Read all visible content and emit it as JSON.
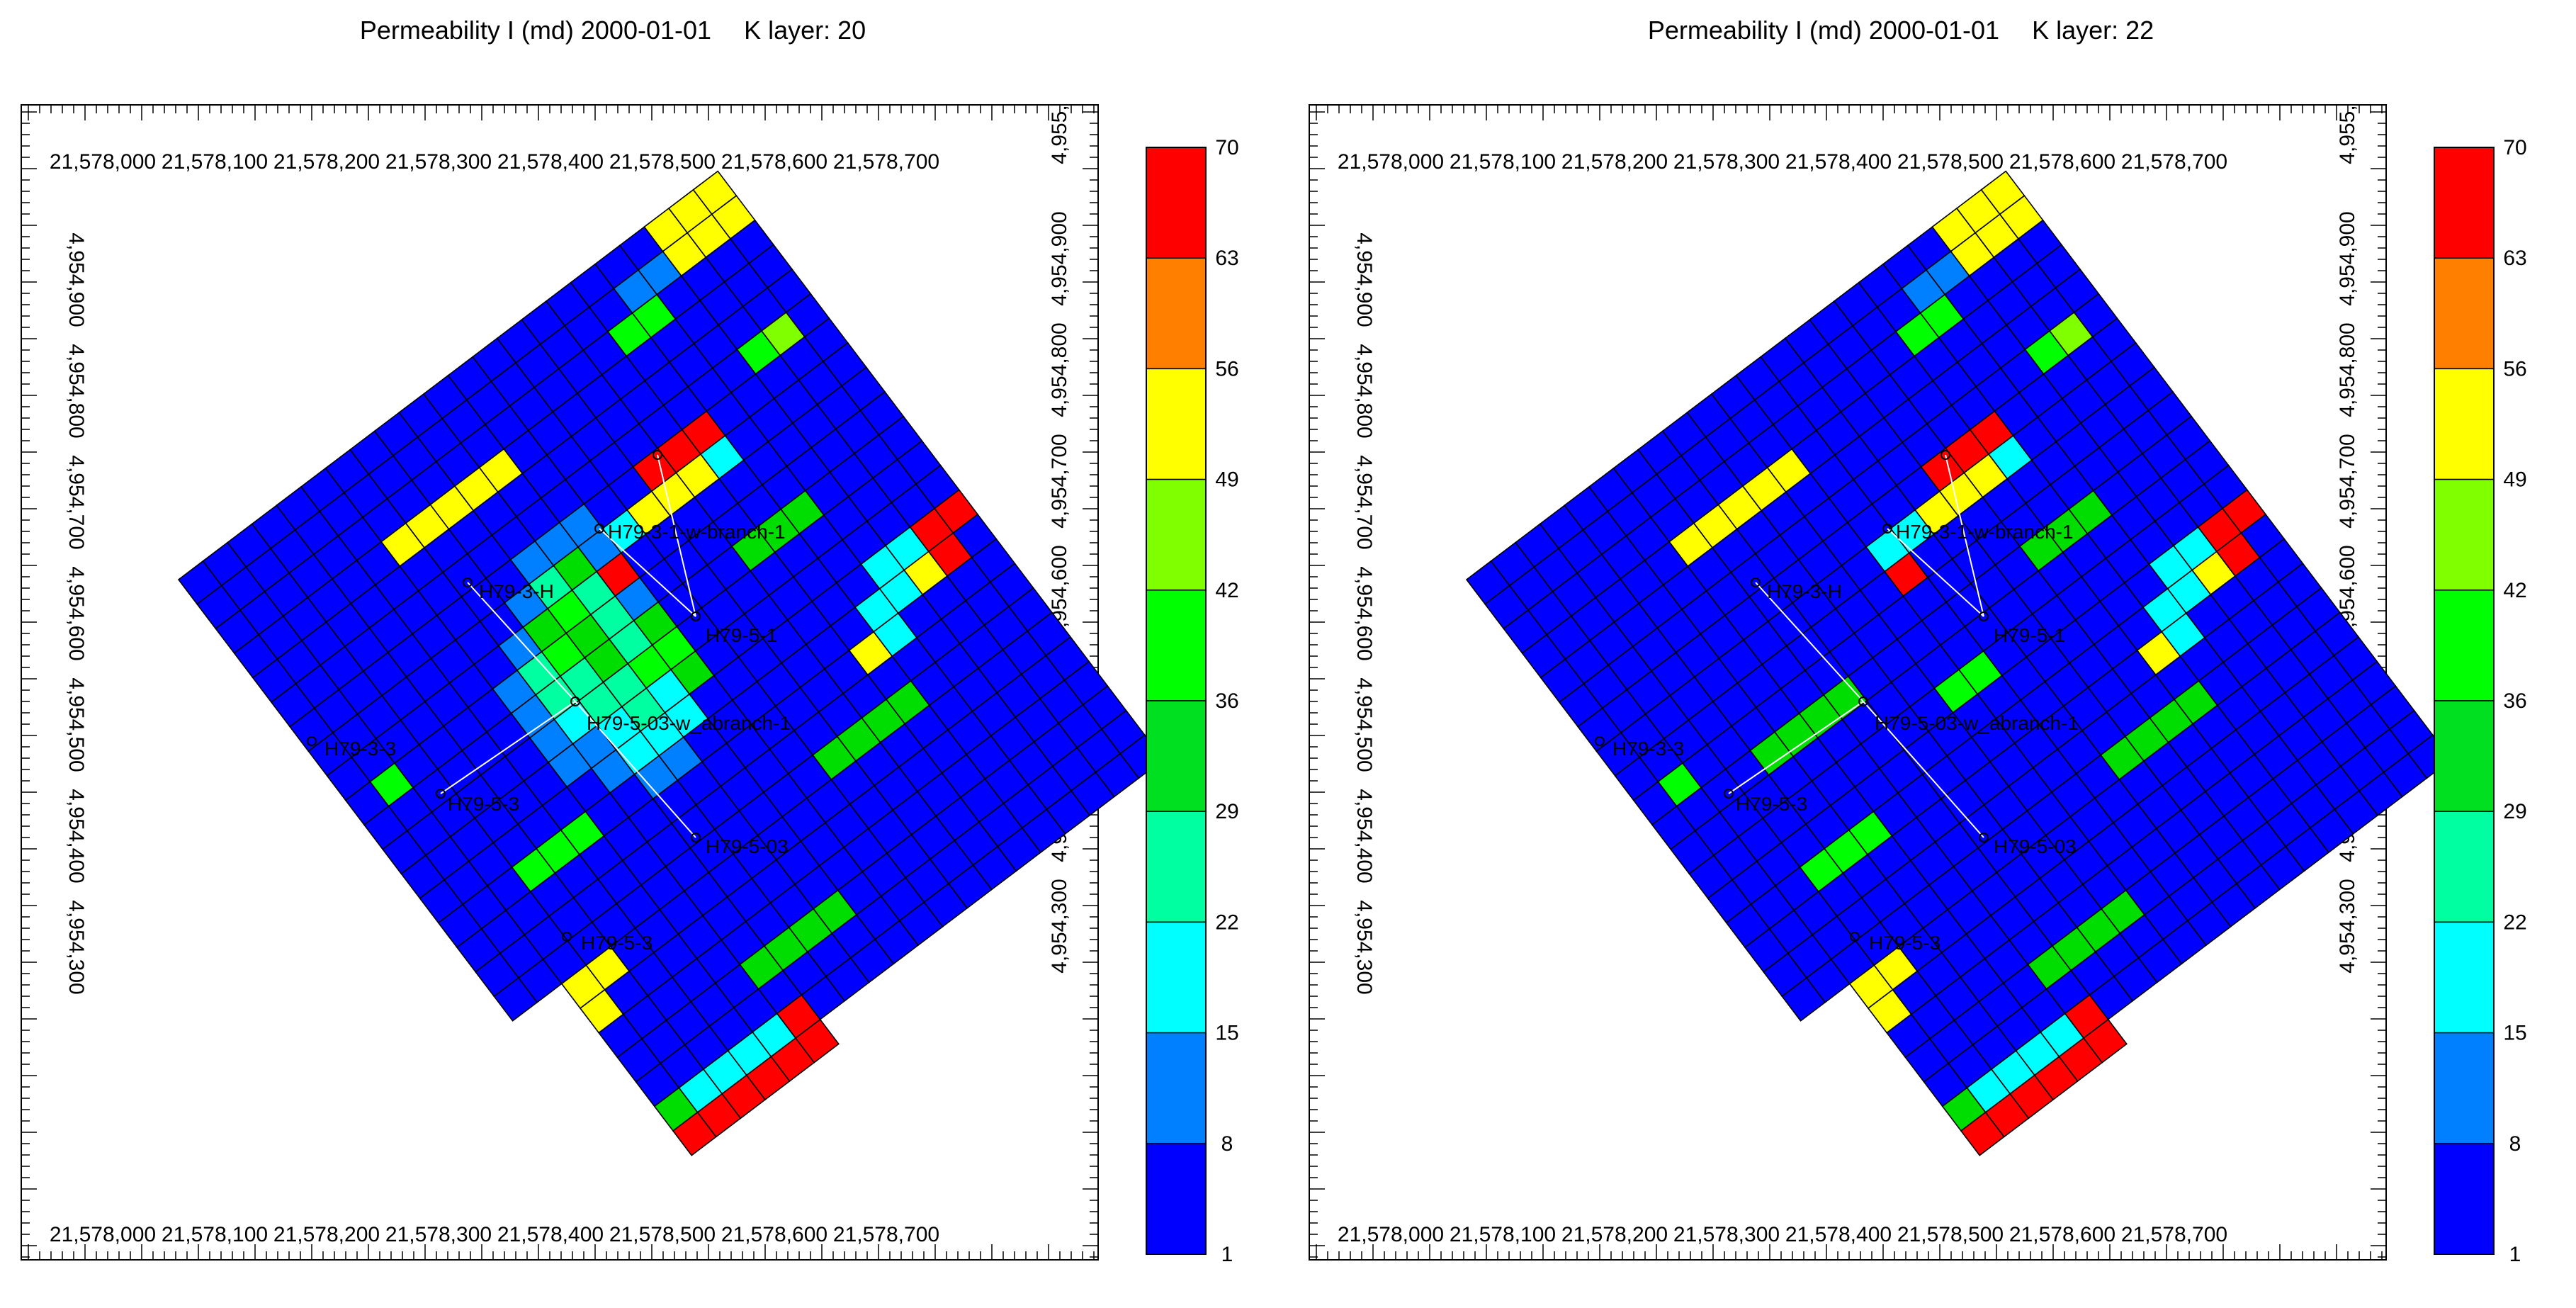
{
  "panels": [
    {
      "title_property": "Permeability I (md) 2000-01-01",
      "title_layer": "K layer: 20",
      "x_ticks": [
        "21,578,000",
        "21,578,100",
        "21,578,200",
        "21,578,300",
        "21,578,400",
        "21,578,500",
        "21,578,600",
        "21,578,700"
      ],
      "y_ticks": [
        "4,954,900",
        "4,954,800",
        "4,954,700",
        "4,954,600",
        "4,954,500",
        "4,954,400",
        "4,954,300"
      ],
      "y_ticks_right": [
        "4,955,",
        "4,954,900",
        "4,954,800",
        "4,954,700",
        "4,954,600",
        "4,954,500",
        "4,954,400",
        "4,954,300"
      ],
      "colorbar_labels": [
        "70",
        "63",
        "56",
        "49",
        "42",
        "36",
        "29",
        "22",
        "15",
        "8",
        "1"
      ],
      "wells": [
        "H79-3-1-w-branch-1",
        "H79-3-H",
        "H79-5-1",
        "H79-5-03-w_abranch-1",
        "H79-3-3",
        "H79-5-3",
        "H79-5-03",
        "H79-5-3"
      ],
      "has_blob": true
    },
    {
      "title_property": "Permeability I (md) 2000-01-01",
      "title_layer": "K layer: 22",
      "x_ticks": [
        "21,578,000",
        "21,578,100",
        "21,578,200",
        "21,578,300",
        "21,578,400",
        "21,578,500",
        "21,578,600",
        "21,578,700"
      ],
      "y_ticks": [
        "4,954,900",
        "4,954,800",
        "4,954,700",
        "4,954,600",
        "4,954,500",
        "4,954,400",
        "4,954,300"
      ],
      "y_ticks_right": [
        "4,955,",
        "4,954,900",
        "4,954,800",
        "4,954,700",
        "4,954,600",
        "4,954,500",
        "4,954,400",
        "4,954,300"
      ],
      "colorbar_labels": [
        "70",
        "63",
        "56",
        "49",
        "42",
        "36",
        "29",
        "22",
        "15",
        "8",
        "1"
      ],
      "wells": [
        "H79-3-1-w-branch-1",
        "H79-3-H",
        "H79-5-1",
        "H79-5-03-w_abranch-1",
        "H79-3-3",
        "H79-5-3",
        "H79-5-03",
        "H79-5-3"
      ],
      "has_blob": false
    }
  ],
  "colorbar_colors": [
    "#ff0000",
    "#ff8000",
    "#ffff00",
    "#80ff00",
    "#00ff00",
    "#00e020",
    "#00ffa0",
    "#00ffff",
    "#0080ff",
    "#0000ff"
  ],
  "colors": {
    "background_cell": "#0000ff",
    "grid": "#000000"
  }
}
